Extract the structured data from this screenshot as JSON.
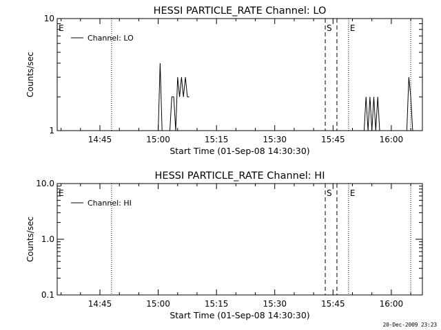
{
  "chart_data": [
    {
      "type": "line",
      "title": "HESSI PARTICLE_RATE Channel: LO",
      "xlabel": "Start Time (01-Sep-08 14:30:30)",
      "ylabel": "Counts/sec",
      "xlim": [
        "14:34",
        "16:08"
      ],
      "ylim": [
        1,
        10
      ],
      "y_scale": "log",
      "x_ticks": [
        "14:45",
        "15:00",
        "15:15",
        "15:30",
        "15:45",
        "16:00"
      ],
      "y_ticks": [
        "1",
        "10"
      ],
      "legend": {
        "placement": "top-left",
        "entries": [
          "Channel: LO"
        ]
      },
      "series": [
        {
          "name": "Channel: LO",
          "values": [
            [
              "15:00",
              1
            ],
            [
              "15:00:30",
              4
            ],
            [
              "15:01",
              1
            ],
            [
              "15:03",
              1
            ],
            [
              "15:03:30",
              2
            ],
            [
              "15:04",
              2
            ],
            [
              "15:04:30",
              1
            ],
            [
              "15:05",
              3
            ],
            [
              "15:05:30",
              2
            ],
            [
              "15:06",
              3
            ],
            [
              "15:06:30",
              2
            ],
            [
              "15:07",
              3
            ],
            [
              "15:07:30",
              2
            ],
            [
              "15:08",
              2
            ],
            [
              "15:53",
              1
            ],
            [
              "15:53:30",
              2
            ],
            [
              "15:54",
              1
            ],
            [
              "15:54:30",
              2
            ],
            [
              "15:55",
              1
            ],
            [
              "15:55:30",
              2
            ],
            [
              "15:56",
              1
            ],
            [
              "15:56:30",
              2
            ],
            [
              "15:57",
              1
            ],
            [
              "16:04",
              1
            ],
            [
              "16:04:30",
              3
            ],
            [
              "16:05",
              2
            ],
            [
              "16:05:30",
              1
            ]
          ]
        }
      ],
      "markers": [
        {
          "label": "E",
          "x": "14:34",
          "style": "none"
        },
        {
          "label": "",
          "x": "14:48",
          "style": "dotted"
        },
        {
          "label": "S",
          "x": "15:43",
          "style": "dashed"
        },
        {
          "label": "",
          "x": "15:46",
          "style": "dashed"
        },
        {
          "label": "E",
          "x": "15:49",
          "style": "dotted"
        },
        {
          "label": "",
          "x": "16:05",
          "style": "dotted"
        }
      ]
    },
    {
      "type": "line",
      "title": "HESSI PARTICLE_RATE Channel: HI",
      "xlabel": "Start Time (01-Sep-08 14:30:30)",
      "ylabel": "Counts/sec",
      "xlim": [
        "14:34",
        "16:08"
      ],
      "ylim": [
        0.1,
        10
      ],
      "y_scale": "log",
      "x_ticks": [
        "14:45",
        "15:00",
        "15:15",
        "15:30",
        "15:45",
        "16:00"
      ],
      "y_ticks": [
        "10.0",
        "1.0",
        "0.1"
      ],
      "legend": {
        "placement": "top-left",
        "entries": [
          "Channel: HI"
        ]
      },
      "series": [
        {
          "name": "Channel: HI",
          "values": []
        }
      ],
      "markers": [
        {
          "label": "E",
          "x": "14:34",
          "style": "none"
        },
        {
          "label": "",
          "x": "14:48",
          "style": "dotted"
        },
        {
          "label": "S",
          "x": "15:43",
          "style": "dashed"
        },
        {
          "label": "",
          "x": "15:46",
          "style": "dashed"
        },
        {
          "label": "E",
          "x": "15:49",
          "style": "dotted"
        },
        {
          "label": "",
          "x": "16:05",
          "style": "dotted"
        }
      ]
    }
  ],
  "footer": {
    "timestamp": "20-Dec-2009 23:23"
  }
}
